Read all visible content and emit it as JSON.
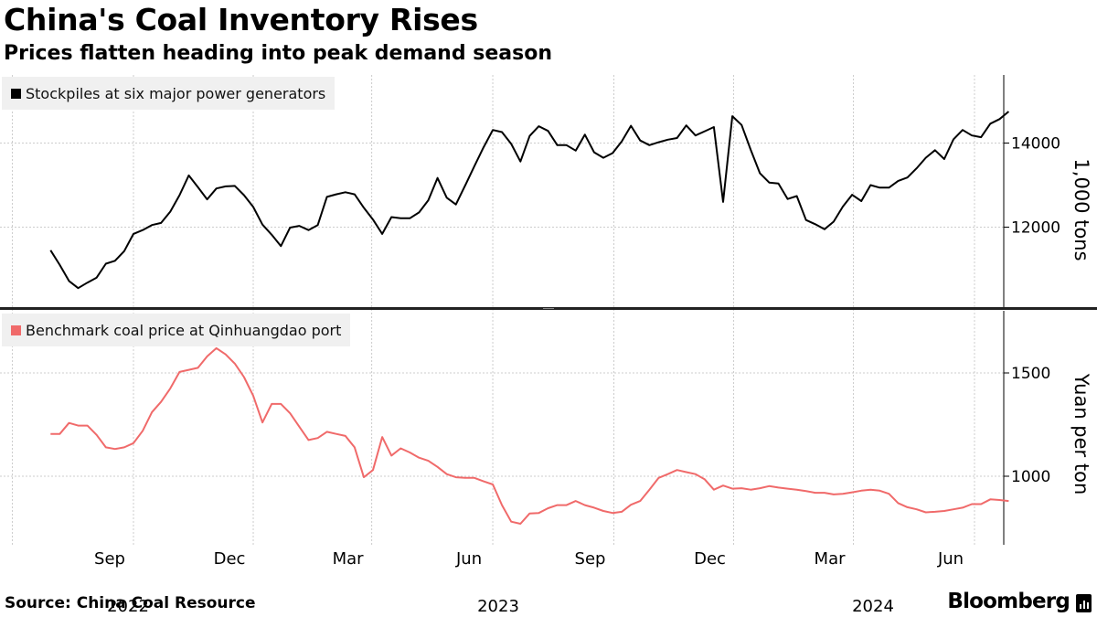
{
  "title": "China's Coal Inventory Rises",
  "subtitle": "Prices flatten heading into peak demand season",
  "source": "Source: China Coal Resource",
  "brand": "Bloomberg",
  "colors": {
    "stockpiles": "#000000",
    "price": "#f06a6a",
    "grid": "#cccccc",
    "background": "#ffffff",
    "legend_bg": "#f0f0f0"
  },
  "chart_data": {
    "type": "line",
    "x_axis": {
      "month_ticks": [
        "Sep",
        "Dec",
        "Mar",
        "Jun",
        "Sep",
        "Dec",
        "Mar",
        "Jun"
      ],
      "year_labels": [
        "2022",
        "2023",
        "2024"
      ]
    },
    "panels": [
      {
        "name": "stockpiles",
        "legend": "Stockpiles at six major power generators",
        "ylabel": "1,000 tons",
        "yticks": [
          12000,
          14000
        ],
        "ylim": [
          10000,
          15650
        ],
        "color": "#000000",
        "series": [
          {
            "d": "2022-06-30",
            "v": 11450
          },
          {
            "d": "2022-07-07",
            "v": 11100
          },
          {
            "d": "2022-07-14",
            "v": 10720
          },
          {
            "d": "2022-07-21",
            "v": 10550
          },
          {
            "d": "2022-07-28",
            "v": 10680
          },
          {
            "d": "2022-08-04",
            "v": 10800
          },
          {
            "d": "2022-08-11",
            "v": 11130
          },
          {
            "d": "2022-08-18",
            "v": 11200
          },
          {
            "d": "2022-08-25",
            "v": 11430
          },
          {
            "d": "2022-09-01",
            "v": 11840
          },
          {
            "d": "2022-09-08",
            "v": 11930
          },
          {
            "d": "2022-09-15",
            "v": 12050
          },
          {
            "d": "2022-09-22",
            "v": 12100
          },
          {
            "d": "2022-09-29",
            "v": 12370
          },
          {
            "d": "2022-10-06",
            "v": 12760
          },
          {
            "d": "2022-10-13",
            "v": 13230
          },
          {
            "d": "2022-10-20",
            "v": 12950
          },
          {
            "d": "2022-10-27",
            "v": 12660
          },
          {
            "d": "2022-11-03",
            "v": 12920
          },
          {
            "d": "2022-11-10",
            "v": 12970
          },
          {
            "d": "2022-11-17",
            "v": 12980
          },
          {
            "d": "2022-11-24",
            "v": 12760
          },
          {
            "d": "2022-12-01",
            "v": 12480
          },
          {
            "d": "2022-12-08",
            "v": 12060
          },
          {
            "d": "2022-12-15",
            "v": 11820
          },
          {
            "d": "2022-12-22",
            "v": 11550
          },
          {
            "d": "2022-12-29",
            "v": 11990
          },
          {
            "d": "2023-01-05",
            "v": 12030
          },
          {
            "d": "2023-01-12",
            "v": 11930
          },
          {
            "d": "2023-01-19",
            "v": 12050
          },
          {
            "d": "2023-01-26",
            "v": 12720
          },
          {
            "d": "2023-02-02",
            "v": 12780
          },
          {
            "d": "2023-02-09",
            "v": 12830
          },
          {
            "d": "2023-02-16",
            "v": 12780
          },
          {
            "d": "2023-02-23",
            "v": 12460
          },
          {
            "d": "2023-03-02",
            "v": 12180
          },
          {
            "d": "2023-03-09",
            "v": 11840
          },
          {
            "d": "2023-03-16",
            "v": 12240
          },
          {
            "d": "2023-03-23",
            "v": 12210
          },
          {
            "d": "2023-03-30",
            "v": 12210
          },
          {
            "d": "2023-04-06",
            "v": 12350
          },
          {
            "d": "2023-04-13",
            "v": 12640
          },
          {
            "d": "2023-04-20",
            "v": 13170
          },
          {
            "d": "2023-04-27",
            "v": 12700
          },
          {
            "d": "2023-05-04",
            "v": 12540
          },
          {
            "d": "2023-05-11",
            "v": 12990
          },
          {
            "d": "2023-05-18",
            "v": 13450
          },
          {
            "d": "2023-05-25",
            "v": 13900
          },
          {
            "d": "2023-06-01",
            "v": 14310
          },
          {
            "d": "2023-06-08",
            "v": 14260
          },
          {
            "d": "2023-06-15",
            "v": 13980
          },
          {
            "d": "2023-06-22",
            "v": 13560
          },
          {
            "d": "2023-06-29",
            "v": 14170
          },
          {
            "d": "2023-07-06",
            "v": 14400
          },
          {
            "d": "2023-07-13",
            "v": 14290
          },
          {
            "d": "2023-07-20",
            "v": 13950
          },
          {
            "d": "2023-07-27",
            "v": 13950
          },
          {
            "d": "2023-08-03",
            "v": 13820
          },
          {
            "d": "2023-08-10",
            "v": 14200
          },
          {
            "d": "2023-08-17",
            "v": 13780
          },
          {
            "d": "2023-08-24",
            "v": 13650
          },
          {
            "d": "2023-08-31",
            "v": 13760
          },
          {
            "d": "2023-09-07",
            "v": 14040
          },
          {
            "d": "2023-09-14",
            "v": 14410
          },
          {
            "d": "2023-09-21",
            "v": 14060
          },
          {
            "d": "2023-09-28",
            "v": 13950
          },
          {
            "d": "2023-10-05",
            "v": 14020
          },
          {
            "d": "2023-10-12",
            "v": 14080
          },
          {
            "d": "2023-10-19",
            "v": 14120
          },
          {
            "d": "2023-10-26",
            "v": 14420
          },
          {
            "d": "2023-11-02",
            "v": 14180
          },
          {
            "d": "2023-11-09",
            "v": 14280
          },
          {
            "d": "2023-11-16",
            "v": 14380
          },
          {
            "d": "2023-11-23",
            "v": 12600
          },
          {
            "d": "2023-11-30",
            "v": 14640
          },
          {
            "d": "2023-12-07",
            "v": 14430
          },
          {
            "d": "2023-12-14",
            "v": 13840
          },
          {
            "d": "2023-12-21",
            "v": 13280
          },
          {
            "d": "2023-12-28",
            "v": 13060
          },
          {
            "d": "2024-01-04",
            "v": 13040
          },
          {
            "d": "2024-01-11",
            "v": 12670
          },
          {
            "d": "2024-01-18",
            "v": 12740
          },
          {
            "d": "2024-01-25",
            "v": 12170
          },
          {
            "d": "2024-02-01",
            "v": 12070
          },
          {
            "d": "2024-02-08",
            "v": 11950
          },
          {
            "d": "2024-02-15",
            "v": 12130
          },
          {
            "d": "2024-02-22",
            "v": 12490
          },
          {
            "d": "2024-02-29",
            "v": 12770
          },
          {
            "d": "2024-03-07",
            "v": 12620
          },
          {
            "d": "2024-03-14",
            "v": 13000
          },
          {
            "d": "2024-03-21",
            "v": 12940
          },
          {
            "d": "2024-03-28",
            "v": 12940
          },
          {
            "d": "2024-04-04",
            "v": 13100
          },
          {
            "d": "2024-04-11",
            "v": 13180
          },
          {
            "d": "2024-04-18",
            "v": 13400
          },
          {
            "d": "2024-04-25",
            "v": 13650
          },
          {
            "d": "2024-05-02",
            "v": 13830
          },
          {
            "d": "2024-05-09",
            "v": 13620
          },
          {
            "d": "2024-05-16",
            "v": 14090
          },
          {
            "d": "2024-05-23",
            "v": 14310
          },
          {
            "d": "2024-05-30",
            "v": 14180
          },
          {
            "d": "2024-06-06",
            "v": 14140
          },
          {
            "d": "2024-06-13",
            "v": 14460
          },
          {
            "d": "2024-06-20",
            "v": 14570
          },
          {
            "d": "2024-06-27",
            "v": 14750
          }
        ]
      },
      {
        "name": "price",
        "legend": "Benchmark coal price at Qinhuangdao port",
        "ylabel": "Yuan per ton",
        "yticks": [
          1000,
          1500
        ],
        "ylim": [
          700,
          1800
        ],
        "color": "#f06a6a",
        "series": [
          {
            "d": "2022-06-30",
            "v": 1205
          },
          {
            "d": "2022-07-07",
            "v": 1205
          },
          {
            "d": "2022-07-14",
            "v": 1258
          },
          {
            "d": "2022-07-21",
            "v": 1245
          },
          {
            "d": "2022-07-28",
            "v": 1245
          },
          {
            "d": "2022-08-04",
            "v": 1200
          },
          {
            "d": "2022-08-11",
            "v": 1140
          },
          {
            "d": "2022-08-18",
            "v": 1132
          },
          {
            "d": "2022-08-25",
            "v": 1140
          },
          {
            "d": "2022-09-01",
            "v": 1160
          },
          {
            "d": "2022-09-08",
            "v": 1220
          },
          {
            "d": "2022-09-15",
            "v": 1310
          },
          {
            "d": "2022-09-22",
            "v": 1360
          },
          {
            "d": "2022-09-29",
            "v": 1425
          },
          {
            "d": "2022-10-06",
            "v": 1505
          },
          {
            "d": "2022-10-13",
            "v": 1515
          },
          {
            "d": "2022-10-20",
            "v": 1525
          },
          {
            "d": "2022-10-27",
            "v": 1580
          },
          {
            "d": "2022-11-03",
            "v": 1620
          },
          {
            "d": "2022-11-10",
            "v": 1590
          },
          {
            "d": "2022-11-17",
            "v": 1545
          },
          {
            "d": "2022-11-24",
            "v": 1480
          },
          {
            "d": "2022-12-01",
            "v": 1390
          },
          {
            "d": "2022-12-08",
            "v": 1260
          },
          {
            "d": "2022-12-15",
            "v": 1350
          },
          {
            "d": "2022-12-22",
            "v": 1350
          },
          {
            "d": "2022-12-29",
            "v": 1305
          },
          {
            "d": "2023-01-05",
            "v": 1240
          },
          {
            "d": "2023-01-12",
            "v": 1175
          },
          {
            "d": "2023-01-19",
            "v": 1185
          },
          {
            "d": "2023-01-26",
            "v": 1215
          },
          {
            "d": "2023-02-02",
            "v": 1205
          },
          {
            "d": "2023-02-09",
            "v": 1195
          },
          {
            "d": "2023-02-16",
            "v": 1140
          },
          {
            "d": "2023-02-23",
            "v": 995
          },
          {
            "d": "2023-03-02",
            "v": 1030
          },
          {
            "d": "2023-03-09",
            "v": 1190
          },
          {
            "d": "2023-03-16",
            "v": 1100
          },
          {
            "d": "2023-03-23",
            "v": 1135
          },
          {
            "d": "2023-03-30",
            "v": 1115
          },
          {
            "d": "2023-04-06",
            "v": 1090
          },
          {
            "d": "2023-04-13",
            "v": 1075
          },
          {
            "d": "2023-04-20",
            "v": 1045
          },
          {
            "d": "2023-04-27",
            "v": 1010
          },
          {
            "d": "2023-05-04",
            "v": 995
          },
          {
            "d": "2023-05-11",
            "v": 992
          },
          {
            "d": "2023-05-18",
            "v": 992
          },
          {
            "d": "2023-05-25",
            "v": 975
          },
          {
            "d": "2023-06-01",
            "v": 960
          },
          {
            "d": "2023-06-08",
            "v": 860
          },
          {
            "d": "2023-06-15",
            "v": 780
          },
          {
            "d": "2023-06-22",
            "v": 770
          },
          {
            "d": "2023-06-29",
            "v": 820
          },
          {
            "d": "2023-07-06",
            "v": 822
          },
          {
            "d": "2023-07-13",
            "v": 845
          },
          {
            "d": "2023-07-20",
            "v": 860
          },
          {
            "d": "2023-07-27",
            "v": 860
          },
          {
            "d": "2023-08-03",
            "v": 880
          },
          {
            "d": "2023-08-10",
            "v": 860
          },
          {
            "d": "2023-08-17",
            "v": 848
          },
          {
            "d": "2023-08-24",
            "v": 832
          },
          {
            "d": "2023-08-31",
            "v": 822
          },
          {
            "d": "2023-09-07",
            "v": 828
          },
          {
            "d": "2023-09-14",
            "v": 862
          },
          {
            "d": "2023-09-21",
            "v": 880
          },
          {
            "d": "2023-09-28",
            "v": 935
          },
          {
            "d": "2023-10-05",
            "v": 992
          },
          {
            "d": "2023-10-12",
            "v": 1010
          },
          {
            "d": "2023-10-19",
            "v": 1030
          },
          {
            "d": "2023-10-26",
            "v": 1020
          },
          {
            "d": "2023-11-02",
            "v": 1010
          },
          {
            "d": "2023-11-09",
            "v": 985
          },
          {
            "d": "2023-11-16",
            "v": 935
          },
          {
            "d": "2023-11-23",
            "v": 955
          },
          {
            "d": "2023-11-30",
            "v": 940
          },
          {
            "d": "2023-12-07",
            "v": 942
          },
          {
            "d": "2023-12-14",
            "v": 935
          },
          {
            "d": "2023-12-21",
            "v": 942
          },
          {
            "d": "2023-12-28",
            "v": 952
          },
          {
            "d": "2024-01-04",
            "v": 945
          },
          {
            "d": "2024-01-11",
            "v": 940
          },
          {
            "d": "2024-01-18",
            "v": 935
          },
          {
            "d": "2024-01-25",
            "v": 928
          },
          {
            "d": "2024-02-01",
            "v": 920
          },
          {
            "d": "2024-02-08",
            "v": 920
          },
          {
            "d": "2024-02-15",
            "v": 912
          },
          {
            "d": "2024-02-22",
            "v": 915
          },
          {
            "d": "2024-02-29",
            "v": 922
          },
          {
            "d": "2024-03-07",
            "v": 930
          },
          {
            "d": "2024-03-14",
            "v": 935
          },
          {
            "d": "2024-03-21",
            "v": 930
          },
          {
            "d": "2024-03-28",
            "v": 915
          },
          {
            "d": "2024-04-04",
            "v": 870
          },
          {
            "d": "2024-04-11",
            "v": 850
          },
          {
            "d": "2024-04-18",
            "v": 840
          },
          {
            "d": "2024-04-25",
            "v": 825
          },
          {
            "d": "2024-05-02",
            "v": 828
          },
          {
            "d": "2024-05-09",
            "v": 832
          },
          {
            "d": "2024-05-16",
            "v": 840
          },
          {
            "d": "2024-05-23",
            "v": 848
          },
          {
            "d": "2024-05-30",
            "v": 865
          },
          {
            "d": "2024-06-06",
            "v": 865
          },
          {
            "d": "2024-06-13",
            "v": 888
          },
          {
            "d": "2024-06-20",
            "v": 885
          },
          {
            "d": "2024-06-27",
            "v": 880
          }
        ]
      }
    ]
  }
}
